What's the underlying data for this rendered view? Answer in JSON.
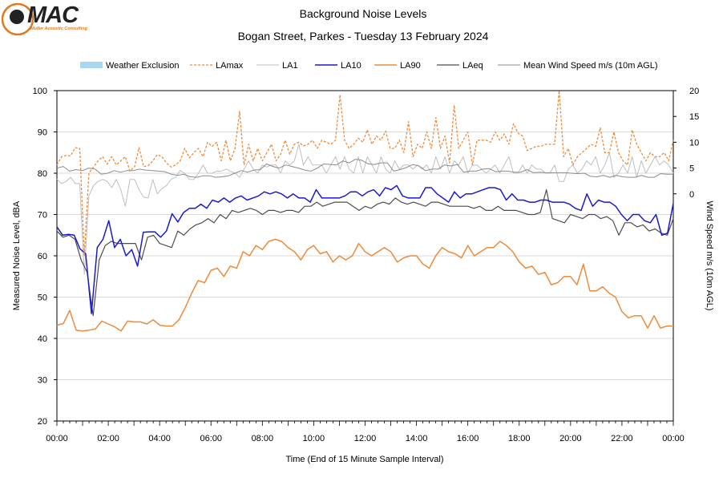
{
  "logo": {
    "text": "MAC",
    "subtext": "Muller Acoustic Consulting"
  },
  "chart_data": {
    "type": "line",
    "title": "Background Noise Levels",
    "subtitle": "Bogan Street, Parkes - Tuesday 13 February 2024",
    "xlabel": "Time (End of 15 Minute Sample Interval)",
    "ylabel": "Measured Noise Level, dBA",
    "y2label": "Wind Speed m/s (10m AGL)",
    "xlim": [
      0,
      24
    ],
    "ylim": [
      20,
      100
    ],
    "y2lim": [
      -44,
      20
    ],
    "x_ticks": [
      "00:00",
      "02:00",
      "04:00",
      "06:00",
      "08:00",
      "10:00",
      "12:00",
      "14:00",
      "16:00",
      "18:00",
      "20:00",
      "22:00",
      "00:00"
    ],
    "y_ticks": [
      "20",
      "30",
      "40",
      "50",
      "60",
      "70",
      "80",
      "90",
      "100"
    ],
    "y2_ticks": [
      "0",
      "5",
      "10",
      "15",
      "20"
    ],
    "grid": true,
    "legend_position": "top",
    "legend": [
      "Weather Exclusion",
      "LAmax",
      "LA1",
      "LA10",
      "LA90",
      "LAeq",
      "Mean Wind Speed m/s (10m AGL)"
    ],
    "colors": {
      "weather_exclusion": "#a9d6f0",
      "LAmax": "#ee8a3a",
      "LA1": "#bfbfbf",
      "LA10": "#1a1ad2",
      "LA90": "#ee8a3a",
      "LAeq": "#4d4d4d",
      "wind": "#8c8c8c",
      "grid": "#d9d9d9"
    },
    "series": [
      {
        "name": "LAmax",
        "axis": "left",
        "values": [
          82,
          84,
          84.3,
          84.2,
          86.2,
          86,
          60,
          80,
          81.5,
          83,
          84,
          82.2,
          84,
          82,
          83,
          84,
          80.5,
          81.5,
          86.2,
          81.6,
          81.8,
          83,
          84.5,
          84,
          82.5,
          81.5,
          82,
          83,
          86,
          83.7,
          85,
          86,
          84,
          87.5,
          86.5,
          87.5,
          83,
          88,
          83,
          86,
          95,
          82,
          87,
          83,
          86,
          83,
          85,
          87,
          83,
          84.6,
          88,
          84.6,
          87,
          87.5,
          86.6,
          87,
          88,
          86,
          88,
          87.5,
          87,
          88,
          99,
          88,
          86,
          87,
          88.5,
          87.5,
          90.5,
          87,
          89,
          88,
          90.2,
          86,
          86,
          88,
          85,
          92.5,
          84,
          87,
          86,
          90,
          86,
          93.5,
          86,
          89,
          82.5,
          96.5,
          86,
          88,
          90,
          82,
          88,
          88,
          88,
          87.5,
          90,
          88,
          89.5,
          87,
          92,
          89.7,
          89,
          85.5,
          86,
          86.5,
          86.5,
          87,
          87,
          87,
          100,
          84,
          86,
          82,
          84,
          85,
          86,
          87,
          86.5,
          91,
          85,
          85,
          90,
          85,
          83,
          82,
          90.5,
          87,
          85,
          83,
          85,
          84,
          84,
          85,
          83,
          88
        ]
      },
      {
        "name": "LA1",
        "axis": "left",
        "values": [
          78.6,
          77.5,
          78,
          79,
          77.5,
          77.5,
          55.5,
          74.5,
          77,
          78,
          78.5,
          78,
          76.5,
          78.5,
          76,
          72,
          78.5,
          78.5,
          76,
          74.2,
          74,
          78.5,
          75,
          76.3,
          77,
          78.5,
          79,
          80.7,
          80,
          78.5,
          78.5,
          80,
          82,
          80,
          80,
          80.5,
          80.5,
          81,
          80.5,
          80,
          79,
          81,
          83,
          81,
          80,
          82,
          81.5,
          82,
          82,
          80,
          83,
          82,
          83,
          87,
          82,
          84,
          82,
          82,
          82,
          80,
          82,
          84,
          81,
          84,
          81,
          80,
          84,
          80,
          84,
          82,
          80,
          84,
          81,
          80,
          83,
          81,
          82,
          82,
          81,
          82,
          81,
          82,
          80,
          84,
          81,
          84,
          80,
          83,
          82,
          84,
          80,
          82,
          82,
          81,
          80,
          81,
          82,
          80,
          82,
          84,
          80,
          80,
          82,
          80,
          82,
          81,
          81,
          80,
          80,
          82,
          78,
          78,
          81,
          82,
          80,
          81,
          83,
          82,
          84,
          80,
          82,
          85,
          79,
          80,
          82,
          80,
          84,
          79,
          83,
          80,
          82,
          84,
          82,
          83,
          82,
          80
        ]
      },
      {
        "name": "LA10",
        "axis": "left",
        "values": [
          67,
          65,
          65.2,
          65,
          61.7,
          60.5,
          46,
          62,
          64,
          68.5,
          62,
          64,
          60,
          61.5,
          57.5,
          65.7,
          65.8,
          65.8,
          64.5,
          66,
          70.2,
          68.2,
          70.5,
          71.5,
          71.5,
          72.5,
          71.5,
          73.5,
          73,
          74,
          73,
          74,
          74.5,
          73.5,
          74,
          74.5,
          75.5,
          75,
          75.5,
          75,
          74,
          75,
          74,
          74,
          73,
          76,
          74,
          74,
          74,
          74,
          74.5,
          75.5,
          75.5,
          74.5,
          75.5,
          76,
          74.5,
          76.5,
          76,
          77,
          74.5,
          74,
          74,
          74,
          76.5,
          76.5,
          75,
          74,
          73,
          75.5,
          74,
          75,
          75,
          75.5,
          76,
          76.5,
          76.5,
          76,
          73.5,
          75,
          73.5,
          73.5,
          73,
          73,
          73.5,
          73.5,
          73,
          73,
          73,
          72.5,
          71.5,
          71,
          75,
          72,
          73.5,
          73,
          73,
          72,
          70,
          68.5,
          70,
          70,
          68.5,
          68,
          70,
          65,
          65.5,
          72.7
        ]
      },
      {
        "name": "LA90",
        "axis": "left",
        "values": [
          43.2,
          43.6,
          46.8,
          42,
          41.8,
          42,
          42.3,
          44.2,
          43.5,
          42.8,
          41.8,
          44.2,
          44,
          44,
          43.5,
          44.5,
          43.2,
          43,
          43,
          44.5,
          47.5,
          51,
          54,
          53.5,
          56.5,
          57,
          55,
          57.5,
          57,
          61,
          60,
          62.5,
          61.5,
          63.5,
          64,
          63.5,
          62,
          61,
          59,
          61.5,
          62.5,
          60.5,
          61,
          58.5,
          60,
          59,
          60,
          63,
          61,
          60,
          61,
          62,
          61,
          58.5,
          59.5,
          60,
          60,
          58,
          57,
          60,
          62,
          61,
          60.5,
          59.5,
          62.5,
          60,
          61,
          62,
          62,
          63.5,
          62.5,
          61,
          58.5,
          57,
          57.5,
          55.5,
          56,
          53,
          53.5,
          55,
          55,
          53,
          58,
          51.5,
          51.5,
          52.5,
          51,
          50,
          46.5,
          45,
          45.5,
          45.5,
          42.5,
          45.5,
          42.5,
          43,
          43
        ]
      },
      {
        "name": "LAeq",
        "axis": "left",
        "values": [
          66,
          64.5,
          65,
          64,
          59,
          56,
          45.5,
          59,
          62.5,
          63.5,
          63,
          63,
          63,
          63,
          59,
          64.5,
          65,
          63,
          62.5,
          62,
          66,
          65,
          66.5,
          67.5,
          68,
          69,
          68,
          70,
          69,
          71,
          70.5,
          71,
          71.5,
          71,
          70,
          71,
          71,
          70.5,
          71,
          71,
          70.5,
          72,
          72,
          73,
          72,
          72.5,
          73,
          73,
          73,
          72,
          71,
          72,
          71.5,
          72.5,
          73,
          72.5,
          74,
          73,
          72.5,
          73,
          72.5,
          72,
          73,
          73,
          72.5,
          72,
          72,
          72,
          72,
          71.5,
          72,
          71,
          71,
          72,
          71,
          71,
          71,
          70.5,
          70,
          70,
          70.5,
          76,
          69,
          68.5,
          68,
          70,
          69.5,
          69,
          70,
          70,
          69,
          69.5,
          68.5,
          65,
          68,
          68,
          67,
          67.5,
          66,
          66.5,
          65.5,
          65,
          69
        ]
      },
      {
        "name": "Mean Wind Speed m/s (10m AGL)",
        "axis": "right",
        "values": [
          5,
          5.3,
          4.4,
          4.7,
          4.5,
          5,
          4.8,
          3.8,
          4,
          4.5,
          4.2,
          4.5,
          4.5,
          4.8,
          4.6,
          4.5,
          4.4,
          4.3,
          3.8,
          3.6,
          3.8,
          3.3,
          3.2,
          3.5,
          3.5,
          3.2,
          3.3,
          3.5,
          4,
          4.5,
          4.2,
          4.6,
          4.7,
          5.8,
          5.3,
          5,
          5.6,
          5.3,
          5,
          4.6,
          4.4,
          5,
          5.8,
          5.7,
          5.6,
          6.4,
          6,
          6.7,
          6.5,
          5.8,
          5.7,
          6,
          6,
          4.4,
          4.7,
          5.1,
          5.7,
          5.4,
          4.5,
          4.8,
          4.8,
          5.6,
          5.4,
          5.7,
          4.2,
          4.4,
          4.4,
          4.8,
          4.9,
          4.3,
          4.4,
          4.4,
          4.2,
          4.2,
          4.7,
          4.1,
          4.2,
          4.1,
          4.1,
          4.1,
          4.1,
          4,
          3.9,
          4,
          3.4,
          3.3,
          3.6,
          3.2,
          3.6,
          3.3,
          3.2,
          3.2,
          3.6,
          3.2,
          3.2,
          3.9,
          3.8,
          3.8
        ]
      }
    ]
  }
}
